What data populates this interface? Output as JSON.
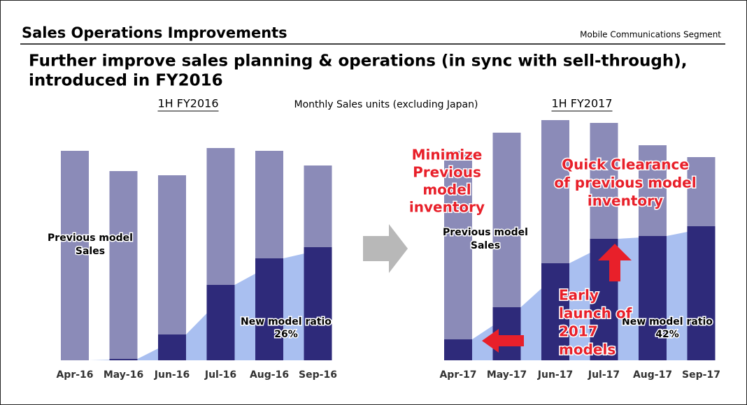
{
  "header": {
    "title": "Sales Operations Improvements",
    "segment": "Mobile Communications Segment",
    "heading": [
      "Further improve sales planning & operations (in sync with sell-through),",
      "introduced in FY2016"
    ],
    "subtitle": "Monthly Sales units (excluding Japan)"
  },
  "chart_data": [
    {
      "type": "bar",
      "stacked": true,
      "title": "1H FY2016",
      "categories": [
        "Apr-16",
        "May-16",
        "Jun-16",
        "Jul-16",
        "Aug-16",
        "Sep-16"
      ],
      "series": [
        {
          "color": "#2e2a7a",
          "values": [
            0,
            2,
            37,
            108,
            146,
            162
          ]
        },
        {
          "color": "#8b8bb8",
          "values": [
            300,
            269,
            228,
            196,
            154,
            117
          ]
        }
      ],
      "area_color": "#a9bff0",
      "annotations": [
        {
          "text": [
            "Previous model",
            "Sales"
          ]
        },
        {
          "text": [
            "New model ratio",
            "26%"
          ]
        }
      ]
    },
    {
      "type": "bar",
      "stacked": true,
      "title": "1H FY2017",
      "categories": [
        "Apr-17",
        "May-17",
        "Jun-17",
        "Jul-17",
        "Aug-17",
        "Sep-17"
      ],
      "series": [
        {
          "color": "#2e2a7a",
          "values": [
            30,
            76,
            139,
            174,
            178,
            192
          ]
        },
        {
          "color": "#8b8bb8",
          "values": [
            270,
            250,
            205,
            166,
            130,
            99
          ]
        }
      ],
      "area_color": "#a9bff0",
      "annotations": [
        {
          "text": [
            "Previous model",
            "Sales"
          ]
        },
        {
          "text": [
            "New model ratio",
            "42%"
          ]
        },
        {
          "text": [
            "Minimize",
            "Previous",
            "model",
            "inventory"
          ]
        },
        {
          "text": [
            "Quick Clearance",
            "of previous model",
            "inventory"
          ]
        },
        {
          "text": [
            "Early",
            "launch of",
            "2017",
            "models"
          ]
        }
      ]
    }
  ]
}
